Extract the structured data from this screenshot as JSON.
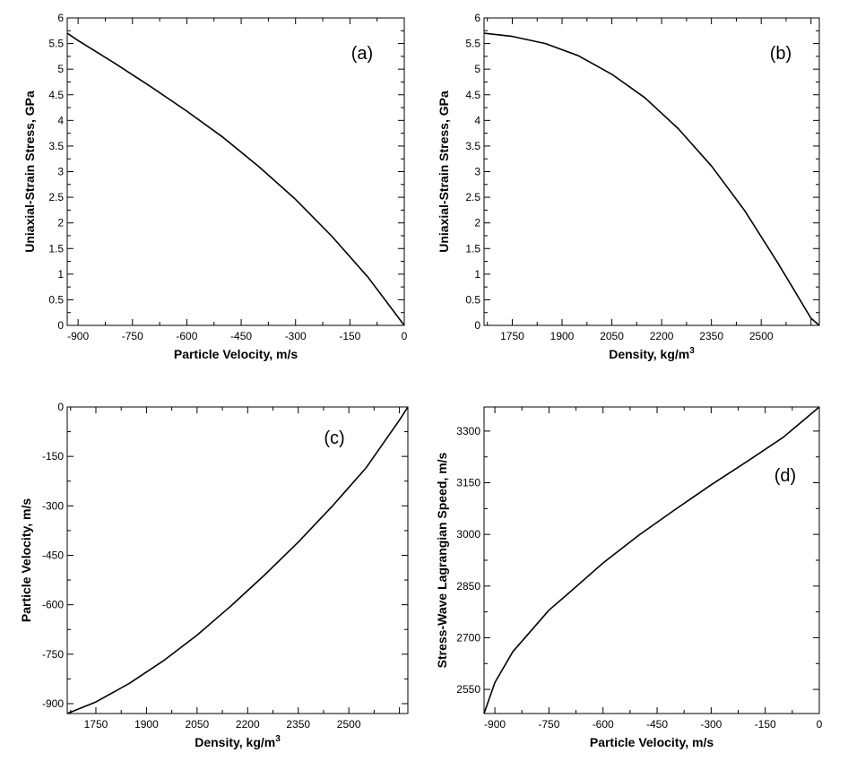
{
  "chart_data": [
    {
      "type": "line",
      "panel_label": "(a)",
      "xlabel": "Particle Velocity, m/s",
      "ylabel": "Uniaxial-Strain Stress, GPa",
      "xlim": [
        -930,
        0
      ],
      "ylim": [
        0,
        6
      ],
      "xticks": [
        "-900",
        "-750",
        "-600",
        "-450",
        "-300",
        "-150",
        "0"
      ],
      "yticks": [
        "0",
        "0.5",
        "1",
        "1.5",
        "2",
        "2.5",
        "3",
        "3.5",
        "4",
        "4.5",
        "5",
        "5.5",
        "6"
      ],
      "grid": false,
      "series": [
        {
          "color": "#000000",
          "x": [
            -930,
            -900,
            -800,
            -700,
            -600,
            -500,
            -400,
            -300,
            -200,
            -100,
            0
          ],
          "y": [
            5.7,
            5.56,
            5.12,
            4.66,
            4.18,
            3.67,
            3.09,
            2.46,
            1.74,
            0.94,
            0.0
          ]
        }
      ]
    },
    {
      "type": "line",
      "panel_label": "(b)",
      "xlabel": "Density, kg/m",
      "xlabel_sup": "3",
      "ylabel": "Uniaxial-Strain Stress, GPa",
      "xlim": [
        1665,
        2675
      ],
      "ylim": [
        0,
        6
      ],
      "xticks": [
        "1750",
        "1900",
        "2050",
        "2200",
        "2350",
        "2500"
      ],
      "yticks": [
        "0",
        "0.5",
        "1",
        "1.5",
        "2",
        "2.5",
        "3",
        "3.5",
        "4",
        "4.5",
        "5",
        "5.5",
        "6"
      ],
      "grid": false,
      "series": [
        {
          "color": "#000000",
          "x": [
            1665,
            1750,
            1850,
            1950,
            2050,
            2150,
            2250,
            2350,
            2450,
            2550,
            2650,
            2675
          ],
          "y": [
            5.7,
            5.64,
            5.5,
            5.26,
            4.9,
            4.44,
            3.84,
            3.11,
            2.24,
            1.22,
            0.14,
            0.0
          ]
        }
      ]
    },
    {
      "type": "line",
      "panel_label": "(c)",
      "xlabel": "Density, kg/m",
      "xlabel_sup": "3",
      "ylabel": "Particle Velocity, m/s",
      "xlim": [
        1665,
        2675
      ],
      "ylim": [
        -930,
        0
      ],
      "xticks": [
        "1750",
        "1900",
        "2050",
        "2200",
        "2350",
        "2500"
      ],
      "yticks": [
        "-900",
        "-750",
        "-600",
        "-450",
        "-300",
        "-150",
        "0"
      ],
      "grid": false,
      "series": [
        {
          "color": "#000000",
          "x": [
            1665,
            1750,
            1850,
            1950,
            2050,
            2150,
            2250,
            2350,
            2450,
            2550,
            2650,
            2675
          ],
          "y": [
            -930,
            -895,
            -838,
            -770,
            -692,
            -604,
            -510,
            -410,
            -302,
            -186,
            -40,
            0
          ]
        }
      ]
    },
    {
      "type": "line",
      "panel_label": "(d)",
      "xlabel": "Particle Velocity, m/s",
      "ylabel": "Stress-Wave Lagrangian Speed, m/s",
      "xlim": [
        -930,
        0
      ],
      "ylim": [
        2480,
        3370
      ],
      "xticks": [
        "-900",
        "-750",
        "-600",
        "-450",
        "-300",
        "-150",
        "0"
      ],
      "yticks": [
        "2550",
        "2700",
        "2850",
        "3000",
        "3150",
        "3300"
      ],
      "grid": false,
      "series": [
        {
          "color": "#000000",
          "x": [
            -930,
            -900,
            -850,
            -800,
            -750,
            -700,
            -600,
            -500,
            -400,
            -300,
            -200,
            -100,
            0
          ],
          "y": [
            2480,
            2570,
            2660,
            2720,
            2780,
            2825,
            2917,
            2998,
            3072,
            3144,
            3212,
            3282,
            3370
          ]
        }
      ]
    }
  ]
}
